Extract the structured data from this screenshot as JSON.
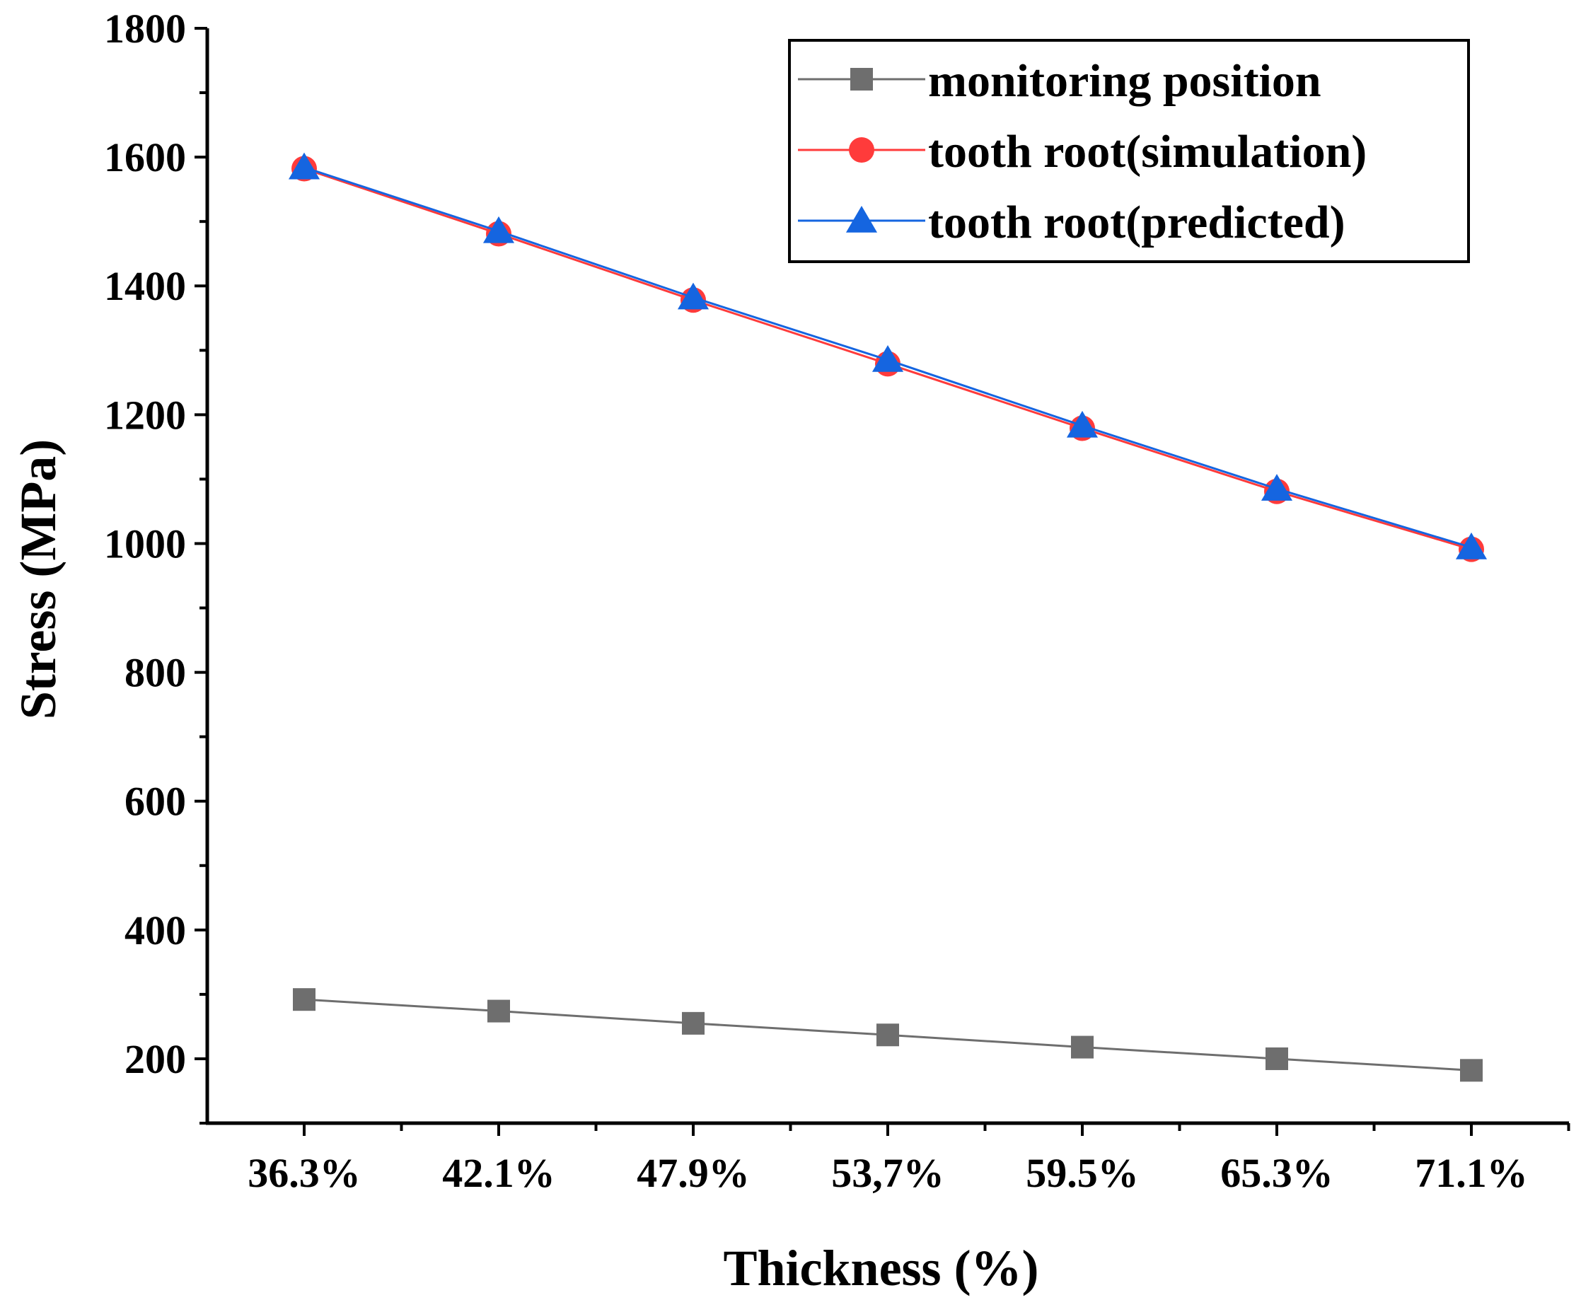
{
  "chart_data": {
    "type": "line",
    "title": "",
    "xlabel": "Thickness (%)",
    "ylabel": "Stress (MPa)",
    "categories": [
      "36.3%",
      "42.1%",
      "47.9%",
      "53,7%",
      "59.5%",
      "65.3%",
      "71.1%"
    ],
    "ylim": [
      100,
      1800
    ],
    "yticks": [
      200,
      400,
      600,
      800,
      1000,
      1200,
      1400,
      1600,
      1800
    ],
    "grid": false,
    "legend_position": "top-right",
    "series": [
      {
        "name": "monitoring position",
        "marker": "square",
        "color": "#6e6e6e",
        "values": [
          292,
          274,
          255,
          237,
          218,
          200,
          182
        ]
      },
      {
        "name": "tooth root(simulation)",
        "marker": "circle",
        "color": "#ff3b3b",
        "values": [
          1582,
          1481,
          1378,
          1279,
          1179,
          1081,
          991
        ]
      },
      {
        "name": "tooth root(predicted)",
        "marker": "triangle",
        "color": "#1565e0",
        "values": [
          1584,
          1485,
          1382,
          1285,
          1183,
          1085,
          994
        ]
      }
    ]
  }
}
